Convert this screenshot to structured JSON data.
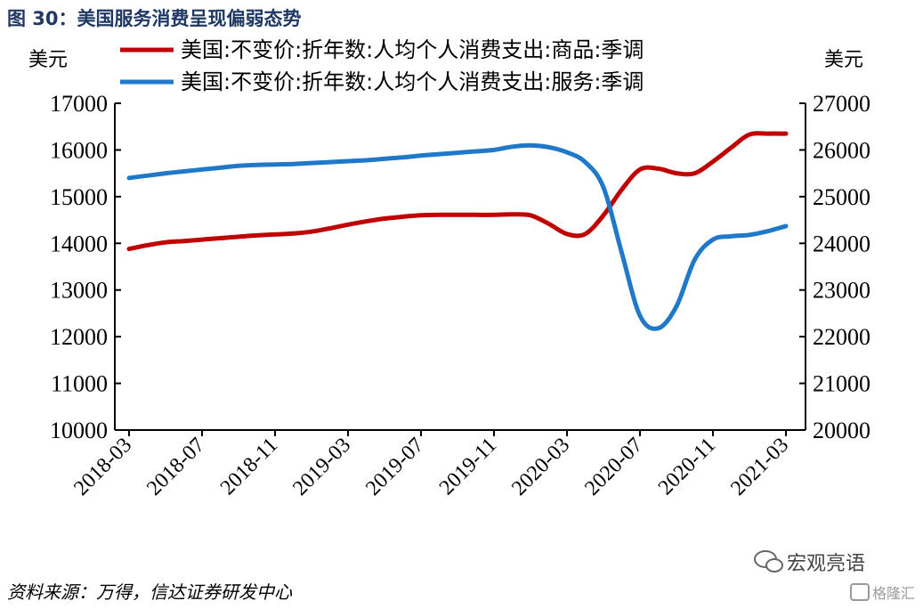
{
  "figure_title": "图 30：美国服务消费呈现偏弱态势",
  "source_note": "资料来源：万得，信达证券研发中心",
  "watermark": {
    "account": "宏观亮语",
    "brand": "格隆汇"
  },
  "colors": {
    "goods_line": "#c00000",
    "services_line": "#1f78c8",
    "title_text": "#1f3864",
    "axis": "#000000"
  },
  "chart_data": {
    "type": "line",
    "title": "",
    "left_unit": "美元",
    "right_unit": "美元",
    "x": [
      "2018-03",
      "2018-04",
      "2018-05",
      "2018-06",
      "2018-07",
      "2018-08",
      "2018-09",
      "2018-10",
      "2018-11",
      "2018-12",
      "2019-01",
      "2019-02",
      "2019-03",
      "2019-04",
      "2019-05",
      "2019-06",
      "2019-07",
      "2019-08",
      "2019-09",
      "2019-10",
      "2019-11",
      "2019-12",
      "2020-01",
      "2020-02",
      "2020-03",
      "2020-04",
      "2020-05",
      "2020-06",
      "2020-07",
      "2020-08",
      "2020-09",
      "2020-10",
      "2020-11",
      "2020-12",
      "2021-01",
      "2021-02",
      "2021-03"
    ],
    "x_tick_labels": [
      "2018-03",
      "2018-07",
      "2018-11",
      "2019-03",
      "2019-07",
      "2019-11",
      "2020-03",
      "2020-07",
      "2020-11",
      "2021-03"
    ],
    "y_left_range": [
      10000,
      17000
    ],
    "y_left_ticks": [
      10000,
      11000,
      12000,
      13000,
      14000,
      15000,
      16000,
      17000
    ],
    "y_right_range": [
      20000,
      27000
    ],
    "y_right_ticks": [
      20000,
      21000,
      22000,
      23000,
      24000,
      25000,
      26000,
      27000
    ],
    "grid": false,
    "legend_position": "top-center",
    "series": [
      {
        "name": "美国:不变价:折年数:人均个人消费支出:商品:季调",
        "axis": "left",
        "values": [
          13880,
          13960,
          14020,
          14050,
          14080,
          14110,
          14140,
          14170,
          14190,
          14210,
          14250,
          14320,
          14400,
          14470,
          14530,
          14570,
          14600,
          14610,
          14610,
          14610,
          14610,
          14620,
          14600,
          14420,
          14200,
          14200,
          14600,
          15150,
          15580,
          15600,
          15500,
          15500,
          15750,
          16050,
          16330,
          16350,
          16350
        ]
      },
      {
        "name": "美国:不变价:折年数:人均个人消费支出:服务:季调",
        "axis": "right",
        "values": [
          25400,
          25450,
          25500,
          25540,
          25580,
          25620,
          25660,
          25680,
          25690,
          25700,
          25720,
          25740,
          25760,
          25780,
          25810,
          25840,
          25880,
          25910,
          25940,
          25970,
          26000,
          26070,
          26100,
          26060,
          25950,
          25740,
          25200,
          23800,
          22450,
          22180,
          22650,
          23650,
          24080,
          24150,
          24180,
          24260,
          24370
        ]
      }
    ]
  }
}
